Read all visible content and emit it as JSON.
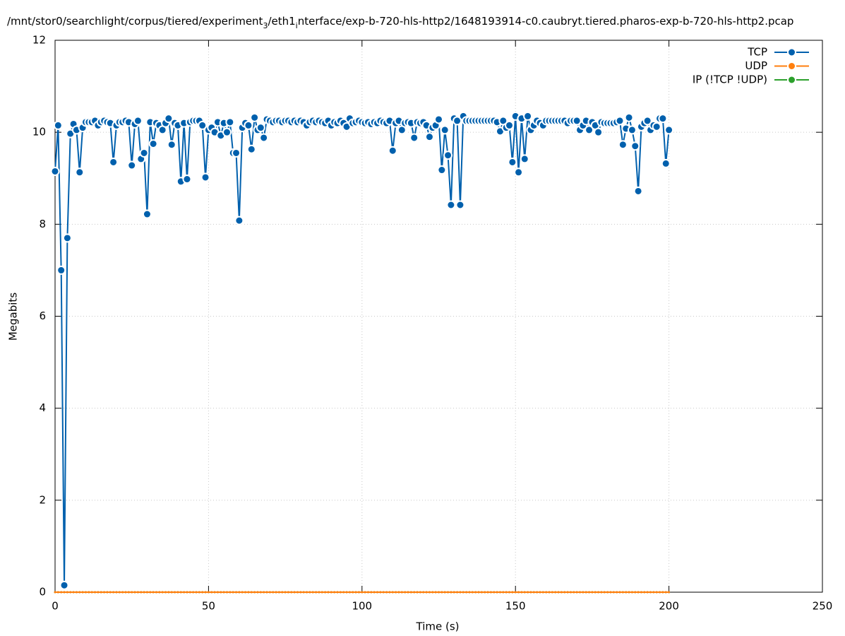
{
  "chart_data": {
    "type": "line",
    "title": [
      "/mnt/stor0/searchlight/corpus/tiered/experiment",
      "3",
      "/eth1",
      "i",
      "nterface/exp-b-720-hls-http2/1648193914-c0.caubryt.tiered.pharos-exp-b-720-hls-http2.pcap"
    ],
    "x_label": "Time (s)",
    "y_label": "Megabits",
    "xlim": [
      0,
      250
    ],
    "xticks": [
      0,
      50,
      100,
      150,
      200,
      250
    ],
    "ylim": [
      0,
      12
    ],
    "yticks": [
      0,
      2,
      4,
      6,
      8,
      10,
      12
    ],
    "grid": true,
    "legend": "top-right",
    "x": [
      0,
      1,
      2,
      3,
      4,
      5,
      6,
      7,
      8,
      9,
      10,
      11,
      12,
      13,
      14,
      15,
      16,
      17,
      18,
      19,
      20,
      21,
      22,
      23,
      24,
      25,
      26,
      27,
      28,
      29,
      30,
      31,
      32,
      33,
      34,
      35,
      36,
      37,
      38,
      39,
      40,
      41,
      42,
      43,
      44,
      45,
      46,
      47,
      48,
      49,
      50,
      51,
      52,
      53,
      54,
      55,
      56,
      57,
      58,
      59,
      60,
      61,
      62,
      63,
      64,
      65,
      66,
      67,
      68,
      69,
      70,
      71,
      72,
      73,
      74,
      75,
      76,
      77,
      78,
      79,
      80,
      81,
      82,
      83,
      84,
      85,
      86,
      87,
      88,
      89,
      90,
      91,
      92,
      93,
      94,
      95,
      96,
      97,
      98,
      99,
      100,
      101,
      102,
      103,
      104,
      105,
      106,
      107,
      108,
      109,
      110,
      111,
      112,
      113,
      114,
      115,
      116,
      117,
      118,
      119,
      120,
      121,
      122,
      123,
      124,
      125,
      126,
      127,
      128,
      129,
      130,
      131,
      132,
      133,
      134,
      135,
      136,
      137,
      138,
      139,
      140,
      141,
      142,
      143,
      144,
      145,
      146,
      147,
      148,
      149,
      150,
      151,
      152,
      153,
      154,
      155,
      156,
      157,
      158,
      159,
      160,
      161,
      162,
      163,
      164,
      165,
      166,
      167,
      168,
      169,
      170,
      171,
      172,
      173,
      174,
      175,
      176,
      177,
      178,
      179,
      180,
      181,
      182,
      183,
      184,
      185,
      186,
      187,
      188,
      189,
      190,
      191,
      192,
      193,
      194,
      195,
      196,
      197,
      198,
      199,
      200
    ],
    "series": [
      {
        "name": "TCP",
        "color": "#0060ad",
        "values": [
          9.15,
          10.15,
          7.0,
          0.15,
          7.7,
          9.97,
          10.18,
          10.05,
          9.13,
          10.1,
          10.22,
          10.22,
          10.22,
          10.25,
          10.15,
          10.22,
          10.25,
          10.22,
          10.2,
          9.35,
          10.15,
          10.22,
          10.22,
          10.25,
          10.22,
          9.28,
          10.18,
          10.25,
          9.42,
          9.55,
          8.22,
          10.22,
          9.75,
          10.2,
          10.15,
          10.05,
          10.2,
          10.3,
          9.73,
          10.2,
          10.15,
          8.93,
          10.2,
          8.98,
          10.22,
          10.25,
          10.25,
          10.25,
          10.15,
          9.02,
          10.05,
          10.1,
          10.0,
          10.22,
          9.93,
          10.2,
          10.0,
          10.22,
          9.55,
          9.55,
          8.08,
          10.1,
          10.2,
          10.15,
          9.63,
          10.32,
          10.05,
          10.1,
          9.88,
          10.28,
          10.25,
          10.22,
          10.25,
          10.25,
          10.22,
          10.25,
          10.25,
          10.22,
          10.25,
          10.22,
          10.25,
          10.22,
          10.15,
          10.22,
          10.25,
          10.22,
          10.25,
          10.22,
          10.2,
          10.25,
          10.15,
          10.22,
          10.2,
          10.25,
          10.2,
          10.12,
          10.3,
          10.2,
          10.22,
          10.25,
          10.22,
          10.2,
          10.22,
          10.18,
          10.22,
          10.2,
          10.25,
          10.22,
          10.2,
          10.25,
          9.6,
          10.2,
          10.25,
          10.05,
          10.2,
          10.22,
          10.2,
          9.88,
          10.22,
          10.2,
          10.22,
          10.15,
          9.9,
          10.1,
          10.15,
          10.28,
          9.18,
          10.05,
          9.5,
          8.42,
          10.3,
          10.25,
          8.42,
          10.35,
          10.25,
          10.25,
          10.25,
          10.25,
          10.25,
          10.25,
          10.25,
          10.25,
          10.25,
          10.25,
          10.22,
          10.02,
          10.25,
          10.1,
          10.15,
          9.35,
          10.35,
          9.13,
          10.3,
          9.42,
          10.35,
          10.05,
          10.15,
          10.25,
          10.2,
          10.15,
          10.25,
          10.25,
          10.25,
          10.25,
          10.25,
          10.25,
          10.25,
          10.2,
          10.25,
          10.25,
          10.25,
          10.05,
          10.15,
          10.25,
          10.05,
          10.22,
          10.15,
          10.0,
          10.22,
          10.2,
          10.2,
          10.2,
          10.2,
          10.22,
          10.25,
          9.73,
          10.08,
          10.32,
          10.05,
          9.7,
          8.72,
          10.12,
          10.2,
          10.25,
          10.05,
          10.15,
          10.12,
          10.3,
          10.3,
          9.32,
          10.05
        ]
      },
      {
        "name": "UDP",
        "color": "#ff7f0e",
        "values": [
          0,
          0,
          0,
          0,
          0,
          0,
          0,
          0,
          0,
          0,
          0,
          0,
          0,
          0,
          0,
          0,
          0,
          0,
          0,
          0,
          0,
          0,
          0,
          0,
          0,
          0,
          0,
          0,
          0,
          0,
          0,
          0,
          0,
          0,
          0,
          0,
          0,
          0,
          0,
          0,
          0,
          0,
          0,
          0,
          0,
          0,
          0,
          0,
          0,
          0,
          0,
          0,
          0,
          0,
          0,
          0,
          0,
          0,
          0,
          0,
          0,
          0,
          0,
          0,
          0,
          0,
          0,
          0,
          0,
          0,
          0,
          0,
          0,
          0,
          0,
          0,
          0,
          0,
          0,
          0,
          0,
          0,
          0,
          0,
          0,
          0,
          0,
          0,
          0,
          0,
          0,
          0,
          0,
          0,
          0,
          0,
          0,
          0,
          0,
          0,
          0,
          0,
          0,
          0,
          0,
          0,
          0,
          0,
          0,
          0,
          0,
          0,
          0,
          0,
          0,
          0,
          0,
          0,
          0,
          0,
          0,
          0,
          0,
          0,
          0,
          0,
          0,
          0,
          0,
          0,
          0,
          0,
          0,
          0,
          0,
          0,
          0,
          0,
          0,
          0,
          0,
          0,
          0,
          0,
          0,
          0,
          0,
          0,
          0,
          0,
          0,
          0,
          0,
          0,
          0,
          0,
          0,
          0,
          0,
          0,
          0,
          0,
          0,
          0,
          0,
          0,
          0,
          0,
          0,
          0,
          0,
          0,
          0,
          0,
          0,
          0,
          0,
          0,
          0,
          0,
          0,
          0,
          0,
          0,
          0,
          0,
          0,
          0,
          0,
          0,
          0,
          0,
          0,
          0,
          0,
          0,
          0,
          0,
          0,
          0,
          0
        ]
      },
      {
        "name": "IP (!TCP  !UDP)",
        "color": "#2ca02c",
        "values": [
          0,
          0,
          0,
          0,
          0,
          0,
          0,
          0,
          0,
          0,
          0,
          0,
          0,
          0,
          0,
          0,
          0,
          0,
          0,
          0,
          0,
          0,
          0,
          0,
          0,
          0,
          0,
          0,
          0,
          0,
          0,
          0,
          0,
          0,
          0,
          0,
          0,
          0,
          0,
          0,
          0,
          0,
          0,
          0,
          0,
          0,
          0,
          0,
          0,
          0,
          0,
          0,
          0,
          0,
          0,
          0,
          0,
          0,
          0,
          0,
          0,
          0,
          0,
          0,
          0,
          0,
          0,
          0,
          0,
          0,
          0,
          0,
          0,
          0,
          0,
          0,
          0,
          0,
          0,
          0,
          0,
          0,
          0,
          0,
          0,
          0,
          0,
          0,
          0,
          0,
          0,
          0,
          0,
          0,
          0,
          0,
          0,
          0,
          0,
          0,
          0,
          0,
          0,
          0,
          0,
          0,
          0,
          0,
          0,
          0,
          0,
          0,
          0,
          0,
          0,
          0,
          0,
          0,
          0,
          0,
          0,
          0,
          0,
          0,
          0,
          0,
          0,
          0,
          0,
          0,
          0,
          0,
          0,
          0,
          0,
          0,
          0,
          0,
          0,
          0,
          0,
          0,
          0,
          0,
          0,
          0,
          0,
          0,
          0,
          0,
          0,
          0,
          0,
          0,
          0,
          0,
          0,
          0,
          0,
          0,
          0,
          0,
          0,
          0,
          0,
          0,
          0,
          0,
          0,
          0,
          0,
          0,
          0,
          0,
          0,
          0,
          0,
          0,
          0,
          0,
          0,
          0,
          0,
          0,
          0,
          0,
          0,
          0,
          0,
          0,
          0,
          0,
          0,
          0,
          0,
          0,
          0,
          0,
          0,
          0,
          0
        ]
      }
    ]
  }
}
